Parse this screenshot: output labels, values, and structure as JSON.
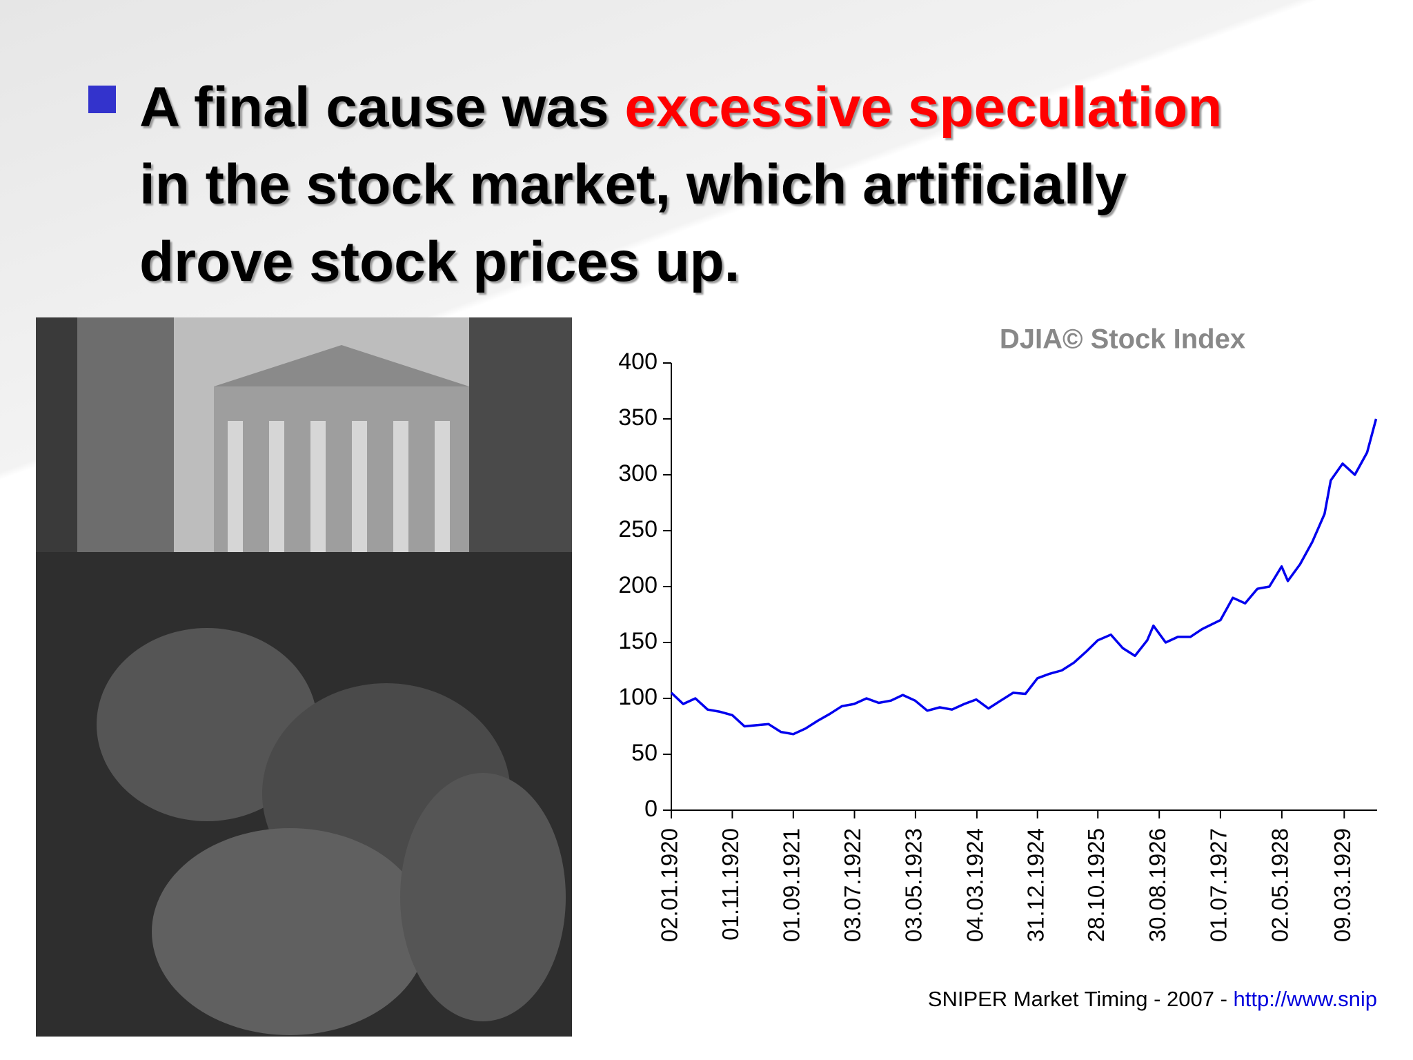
{
  "slide": {
    "bullet": {
      "lines": [
        [
          {
            "text": "A final cause was "
          },
          {
            "text": "excessive speculation",
            "color": "#ff0000"
          }
        ],
        [
          {
            "text": "in the stock market, which artificially"
          }
        ],
        [
          {
            "text": "drove stock prices up."
          }
        ]
      ]
    }
  },
  "chart_data": {
    "type": "line",
    "title": "DJIA© Stock Index",
    "color": "#0000ee",
    "x": [
      "02.01.1920",
      "01.03.1920",
      "01.05.1920",
      "01.07.1920",
      "01.09.1920",
      "01.11.1920",
      "01.01.1921",
      "01.03.1921",
      "01.05.1921",
      "01.07.1921",
      "01.09.1921",
      "01.11.1921",
      "01.01.1922",
      "01.03.1922",
      "01.05.1922",
      "01.07.1922",
      "01.09.1922",
      "01.11.1922",
      "01.01.1923",
      "01.03.1923",
      "01.05.1923",
      "01.07.1923",
      "01.09.1923",
      "01.11.1923",
      "01.01.1924",
      "01.03.1924",
      "01.05.1924",
      "01.07.1924",
      "01.09.1924",
      "01.11.1924",
      "31.12.1924",
      "01.03.1925",
      "01.05.1925",
      "01.07.1925",
      "01.09.1925",
      "28.10.1925",
      "01.01.1926",
      "01.03.1926",
      "01.05.1926",
      "01.07.1926",
      "01.08.1926",
      "01.10.1926",
      "01.12.1926",
      "01.02.1927",
      "01.04.1927",
      "01.07.1927",
      "01.09.1927",
      "01.11.1927",
      "01.01.1928",
      "01.03.1928",
      "01.05.1928",
      "01.06.1928",
      "01.08.1928",
      "01.10.1928",
      "01.12.1928",
      "01.01.1929",
      "01.03.1929",
      "01.05.1929",
      "01.07.1929",
      "15.08.1929"
    ],
    "values": [
      105,
      95,
      100,
      90,
      88,
      85,
      75,
      76,
      77,
      70,
      68,
      73,
      80,
      86,
      93,
      95,
      100,
      96,
      98,
      103,
      98,
      89,
      92,
      90,
      95,
      99,
      91,
      98,
      105,
      104,
      118,
      122,
      125,
      132,
      142,
      152,
      157,
      145,
      138,
      152,
      165,
      150,
      155,
      155,
      162,
      170,
      190,
      185,
      198,
      200,
      218,
      205,
      220,
      240,
      265,
      295,
      310,
      300,
      320,
      350
    ],
    "xlim": [
      "02.01.1920",
      "20.08.1929"
    ],
    "xticks": [
      "02.01.1920",
      "01.11.1920",
      "01.09.1921",
      "03.07.1922",
      "03.05.1923",
      "04.03.1924",
      "31.12.1924",
      "28.10.1925",
      "30.08.1926",
      "01.07.1927",
      "02.05.1928",
      "09.03.1929"
    ],
    "ylim": [
      0,
      400
    ],
    "yticks": [
      0,
      50,
      100,
      150,
      200,
      250,
      300,
      350,
      400
    ],
    "credit": "SNIPER Market Timing - 2007 - ",
    "credit_link": "http://www.snip"
  }
}
